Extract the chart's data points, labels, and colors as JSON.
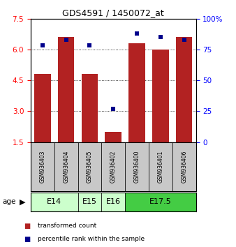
{
  "title": "GDS4591 / 1450072_at",
  "samples": [
    "GSM936403",
    "GSM936404",
    "GSM936405",
    "GSM936402",
    "GSM936400",
    "GSM936401",
    "GSM936406"
  ],
  "red_values": [
    4.8,
    6.6,
    4.8,
    2.0,
    6.3,
    6.0,
    6.6
  ],
  "blue_values": [
    78,
    83,
    78,
    27,
    88,
    85,
    83
  ],
  "ylim_left": [
    1.5,
    7.5
  ],
  "ylim_right": [
    0,
    100
  ],
  "left_ticks": [
    1.5,
    3.0,
    4.5,
    6.0,
    7.5
  ],
  "right_ticks": [
    0,
    25,
    50,
    75,
    100
  ],
  "right_tick_labels": [
    "0",
    "25",
    "50",
    "75",
    "100%"
  ],
  "bar_color": "#b22222",
  "dot_color": "#00008b",
  "age_groups": [
    {
      "label": "E14",
      "start": 0,
      "end": 2,
      "color": "#ccffcc"
    },
    {
      "label": "E15",
      "start": 2,
      "end": 3,
      "color": "#ccffcc"
    },
    {
      "label": "E16",
      "start": 3,
      "end": 4,
      "color": "#ccffcc"
    },
    {
      "label": "E17.5",
      "start": 4,
      "end": 7,
      "color": "#44cc44"
    }
  ],
  "age_label": "age",
  "legend_red": "transformed count",
  "legend_blue": "percentile rank within the sample",
  "bar_bottom": 1.5,
  "bar_width": 0.7,
  "sample_cell_color": "#c8c8c8"
}
